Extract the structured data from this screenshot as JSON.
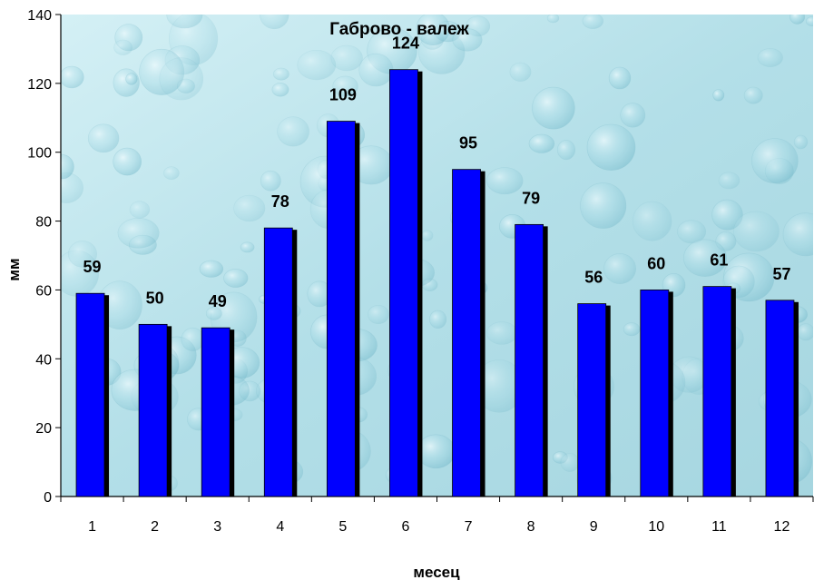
{
  "chart_data": {
    "type": "bar",
    "title": "Габрово - валеж",
    "xlabel": "месец",
    "ylabel": "мм",
    "categories": [
      "1",
      "2",
      "3",
      "4",
      "5",
      "6",
      "7",
      "8",
      "9",
      "10",
      "11",
      "12"
    ],
    "values": [
      59,
      50,
      49,
      78,
      109,
      124,
      95,
      79,
      56,
      60,
      61,
      57
    ],
    "ylim": [
      0,
      140
    ],
    "yticks": [
      0,
      20,
      40,
      60,
      80,
      100,
      120,
      140
    ],
    "grid": false,
    "legend": "none",
    "colors": {
      "bar": "#0000ff",
      "bar_shadow": "#000000",
      "plot_background": "#b7e1ea",
      "axis": "#000000"
    }
  }
}
